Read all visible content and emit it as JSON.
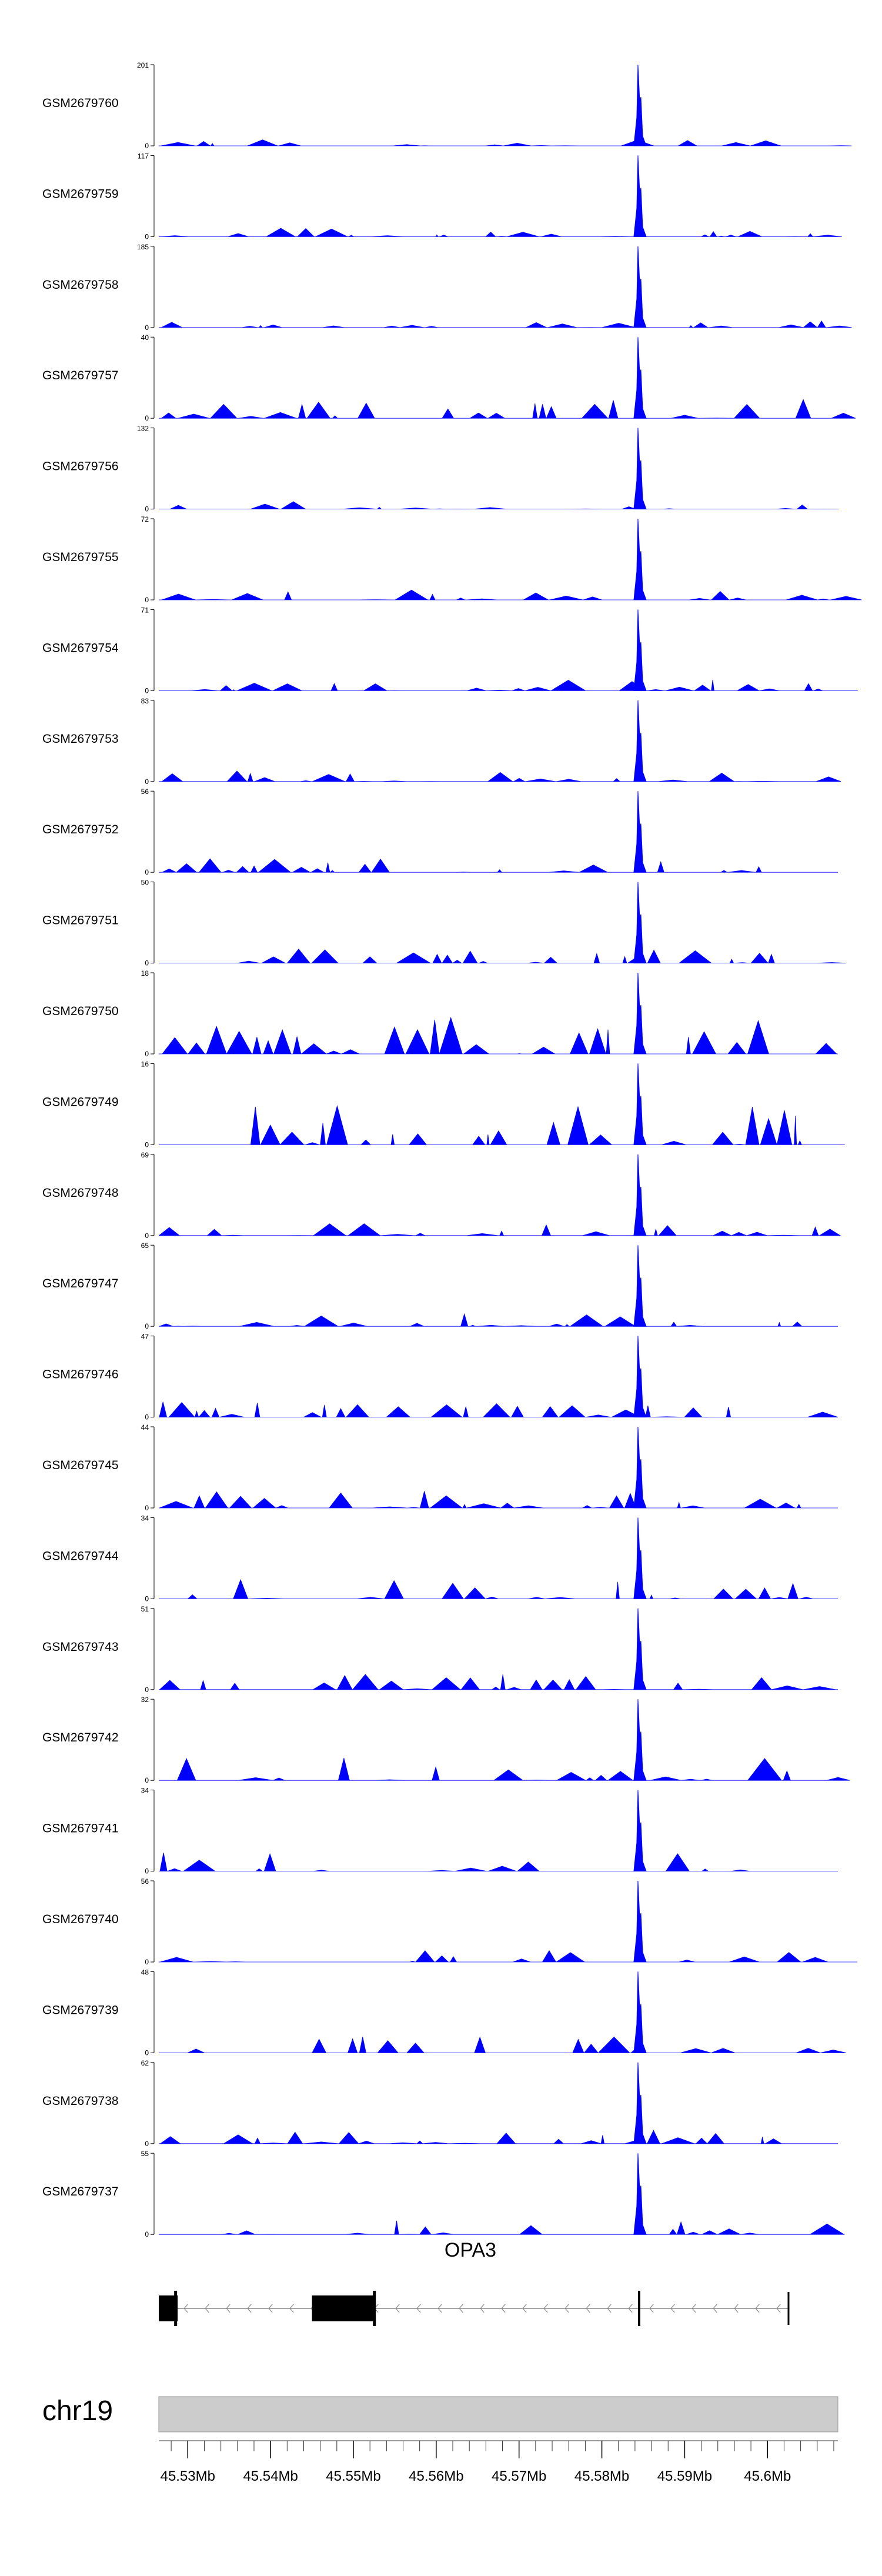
{
  "chart_data": {
    "type": "area",
    "track_color": "#0000ff",
    "tracks": [
      {
        "name": "GSM2679760",
        "ymax": 201,
        "ymin": 0
      },
      {
        "name": "GSM2679759",
        "ymax": 117,
        "ymin": 0
      },
      {
        "name": "GSM2679758",
        "ymax": 185,
        "ymin": 0
      },
      {
        "name": "GSM2679757",
        "ymax": 40,
        "ymin": 0
      },
      {
        "name": "GSM2679756",
        "ymax": 132,
        "ymin": 0
      },
      {
        "name": "GSM2679755",
        "ymax": 72,
        "ymin": 0
      },
      {
        "name": "GSM2679754",
        "ymax": 71,
        "ymin": 0
      },
      {
        "name": "GSM2679753",
        "ymax": 83,
        "ymin": 0
      },
      {
        "name": "GSM2679752",
        "ymax": 56,
        "ymin": 0
      },
      {
        "name": "GSM2679751",
        "ymax": 50,
        "ymin": 0
      },
      {
        "name": "GSM2679750",
        "ymax": 18,
        "ymin": 0
      },
      {
        "name": "GSM2679749",
        "ymax": 16,
        "ymin": 0
      },
      {
        "name": "GSM2679748",
        "ymax": 69,
        "ymin": 0
      },
      {
        "name": "GSM2679747",
        "ymax": 65,
        "ymin": 0
      },
      {
        "name": "GSM2679746",
        "ymax": 47,
        "ymin": 0
      },
      {
        "name": "GSM2679745",
        "ymax": 44,
        "ymin": 0
      },
      {
        "name": "GSM2679744",
        "ymax": 34,
        "ymin": 0
      },
      {
        "name": "GSM2679743",
        "ymax": 51,
        "ymin": 0
      },
      {
        "name": "GSM2679742",
        "ymax": 32,
        "ymin": 0
      },
      {
        "name": "GSM2679741",
        "ymax": 34,
        "ymin": 0
      },
      {
        "name": "GSM2679740",
        "ymax": 56,
        "ymin": 0
      },
      {
        "name": "GSM2679739",
        "ymax": 48,
        "ymin": 0
      },
      {
        "name": "GSM2679738",
        "ymax": 62,
        "ymin": 0
      },
      {
        "name": "GSM2679737",
        "ymax": 55,
        "ymin": 0
      }
    ],
    "peak_position_mb": 45.5845,
    "gene": {
      "name": "OPA3",
      "strand": "-",
      "start_mb": 45.5285,
      "end_mb": 45.6025
    },
    "chromosome": "chr19",
    "x_range_mb": [
      45.5265,
      45.6085
    ],
    "tick_labels": [
      "45.53Mb",
      "45.54Mb",
      "45.55Mb",
      "45.56Mb",
      "45.57Mb",
      "45.58Mb",
      "45.59Mb",
      "45.6Mb"
    ],
    "tick_values_mb": [
      45.53,
      45.54,
      45.55,
      45.56,
      45.57,
      45.58,
      45.59,
      45.6
    ]
  }
}
